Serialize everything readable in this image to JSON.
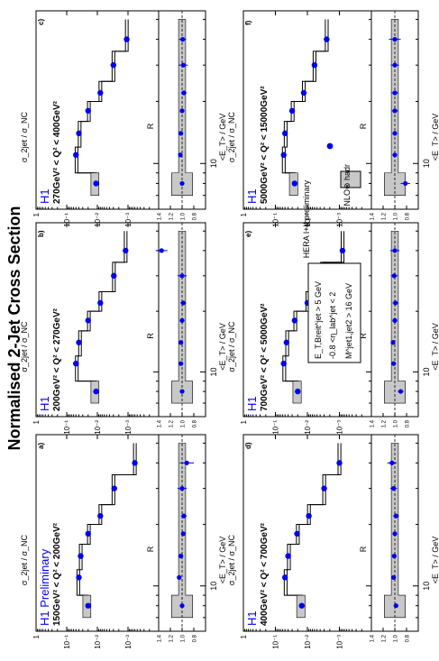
{
  "page": {
    "title": "Normalised  2-Jet Cross Section",
    "x_axis_label": "<E_T> / GeV",
    "y_axis_label": "σ_2jet / σ_NC",
    "ratio_axis_label": "R",
    "x_tick_label": "10"
  },
  "legend": {
    "data_label": "HERA I+II preliminary",
    "theory_label": "NLO⊗ hadr"
  },
  "cuts_box": {
    "line1": "E_T,Breit^jet > 5 GeV",
    "line2": "-0.8 <η_lab^jet < 2",
    "line3": "M^jet1,jet2 > 16 GeV"
  },
  "colors": {
    "data": "#0000ee",
    "label": "#0000ee",
    "band": "#c8c8c8",
    "line": "#000000"
  },
  "chart_data": [
    {
      "type": "line",
      "panel_id": "a)",
      "experiment": "H1 Preliminary",
      "q2_range": "150GeV² < Q² < 200GeV²",
      "x": [
        8,
        11,
        14,
        18,
        22,
        30,
        40
      ],
      "x_bin_edges": [
        7,
        9,
        12,
        16,
        20,
        25,
        35,
        50
      ],
      "data": [
        0.02,
        0.04,
        0.035,
        0.02,
        0.008,
        0.0028,
        0.0006
      ],
      "theory": [
        0.022,
        0.042,
        0.035,
        0.019,
        0.008,
        0.003,
        0.0006
      ],
      "ratio": [
        1.0,
        1.05,
        1.02,
        0.98,
        0.97,
        1.0,
        0.92
      ],
      "ratio_err": [
        0.04,
        0.03,
        0.03,
        0.04,
        0.05,
        0.08,
        0.12
      ],
      "ylim": [
        0.0001,
        1
      ],
      "rlim": [
        0.6,
        1.4
      ],
      "xlim": [
        6,
        55
      ],
      "xscale": "log",
      "yscale": "log"
    },
    {
      "type": "line",
      "panel_id": "b)",
      "experiment": "H1",
      "q2_range": "200GeV² < Q² < 270GeV²",
      "x": [
        8,
        11,
        14,
        18,
        22,
        30,
        40
      ],
      "x_bin_edges": [
        7,
        9,
        12,
        16,
        20,
        25,
        35,
        50
      ],
      "data": [
        0.011,
        0.05,
        0.04,
        0.02,
        0.008,
        0.0029,
        0.0012
      ],
      "theory": [
        0.012,
        0.047,
        0.037,
        0.019,
        0.008,
        0.0029,
        0.0012
      ],
      "ratio": [
        1.0,
        1.02,
        1.02,
        1.0,
        0.98,
        1.0,
        1.35
      ],
      "ratio_err": [
        0.04,
        0.03,
        0.03,
        0.04,
        0.05,
        0.08,
        0.1
      ],
      "ylim": [
        0.0001,
        1
      ],
      "rlim": [
        0.6,
        1.4
      ],
      "xlim": [
        6,
        55
      ],
      "xscale": "log",
      "yscale": "log"
    },
    {
      "type": "line",
      "panel_id": "c)",
      "experiment": "H1",
      "q2_range": "270GeV² < Q² < 400GeV²",
      "x": [
        8,
        11,
        14,
        18,
        22,
        30,
        40
      ],
      "x_bin_edges": [
        7,
        9,
        12,
        16,
        20,
        25,
        35,
        50
      ],
      "data": [
        0.011,
        0.05,
        0.04,
        0.02,
        0.008,
        0.003,
        0.0011
      ],
      "theory": [
        0.012,
        0.048,
        0.038,
        0.019,
        0.008,
        0.003,
        0.0011
      ],
      "ratio": [
        1.0,
        1.03,
        1.02,
        1.0,
        0.97,
        0.98,
        0.99
      ],
      "ratio_err": [
        0.04,
        0.03,
        0.03,
        0.04,
        0.05,
        0.08,
        0.06
      ],
      "ylim": [
        0.0001,
        1
      ],
      "rlim": [
        0.6,
        1.4
      ],
      "xlim": [
        6,
        55
      ],
      "xscale": "log",
      "yscale": "log"
    },
    {
      "type": "line",
      "panel_id": "d)",
      "experiment": "H1",
      "q2_range": "400GeV² < Q² < 700GeV²",
      "x": [
        8,
        11,
        14,
        18,
        22,
        30,
        40
      ],
      "x_bin_edges": [
        7,
        9,
        12,
        16,
        20,
        25,
        35,
        50
      ],
      "data": [
        0.015,
        0.05,
        0.04,
        0.021,
        0.009,
        0.003,
        0.001
      ],
      "theory": [
        0.016,
        0.048,
        0.038,
        0.02,
        0.009,
        0.003,
        0.001
      ],
      "ratio": [
        0.98,
        1.02,
        1.01,
        1.0,
        0.98,
        1.02,
        1.05
      ],
      "ratio_err": [
        0.04,
        0.03,
        0.03,
        0.04,
        0.05,
        0.06,
        0.08
      ],
      "ylim": [
        0.0001,
        1
      ],
      "rlim": [
        0.6,
        1.4
      ],
      "xlim": [
        6,
        55
      ],
      "xscale": "log",
      "yscale": "log"
    },
    {
      "type": "line",
      "panel_id": "e)",
      "experiment": "H1",
      "q2_range": "700GeV² < Q² < 5000GeV²",
      "x": [
        8,
        11,
        14,
        18,
        22,
        30,
        40
      ],
      "x_bin_edges": [
        7,
        9,
        12,
        16,
        20,
        25,
        35,
        50
      ],
      "data": [
        0.02,
        0.055,
        0.045,
        0.025,
        0.01,
        0.0035,
        0.0008
      ],
      "theory": [
        0.021,
        0.053,
        0.043,
        0.024,
        0.01,
        0.0035,
        0.0008
      ],
      "ratio": [
        0.9,
        1.02,
        1.03,
        1.0,
        0.99,
        1.01,
        1.0
      ],
      "ratio_err": [
        0.05,
        0.03,
        0.03,
        0.04,
        0.05,
        0.06,
        0.08
      ],
      "ylim": [
        0.0001,
        1
      ],
      "rlim": [
        0.6,
        1.4
      ],
      "xlim": [
        6,
        55
      ],
      "xscale": "log",
      "yscale": "log"
    },
    {
      "type": "line",
      "panel_id": "f)",
      "experiment": "H1",
      "q2_range": "5000GeV² < Q² < 15000GeV²",
      "x": [
        8,
        11,
        14,
        18,
        22,
        30,
        40
      ],
      "x_bin_edges": [
        7,
        9,
        12,
        16,
        20,
        25,
        35,
        50
      ],
      "data": [
        0.025,
        0.055,
        0.05,
        0.03,
        0.013,
        0.006,
        0.0025
      ],
      "theory": [
        0.027,
        0.055,
        0.048,
        0.029,
        0.013,
        0.006,
        0.0025
      ],
      "ratio": [
        0.82,
        1.0,
        1.0,
        1.0,
        1.0,
        1.0,
        1.0
      ],
      "ratio_err": [
        0.08,
        0.04,
        0.04,
        0.05,
        0.06,
        0.07,
        0.1
      ],
      "ylim": [
        0.0001,
        1
      ],
      "rlim": [
        0.6,
        1.4
      ],
      "xlim": [
        6,
        55
      ],
      "xscale": "log",
      "yscale": "log"
    }
  ]
}
